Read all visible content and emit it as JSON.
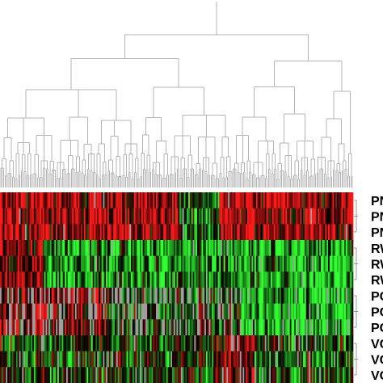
{
  "chart_data": {
    "type": "heatmap",
    "title": "",
    "xlabel": "",
    "ylabel": "",
    "column_count": 240,
    "column_dendrogram": true,
    "row_dendrogram": true,
    "row_labels": [
      "PN",
      "PN",
      "PN",
      "RW",
      "RW",
      "RW",
      "PC",
      "PC",
      "PC",
      "VC",
      "VC",
      "VC"
    ],
    "color_scale": {
      "high": "#ff1a1a",
      "mid": "#000000",
      "low": "#33ff33",
      "missing": "#9e9e9e"
    },
    "row_groups": [
      {
        "label": "PN",
        "rows": 3,
        "pattern": "mostly red, black stripes; green/black patch in middle"
      },
      {
        "label": "RW",
        "rows": 3,
        "pattern": "mostly green, some red at left, black stripes"
      },
      {
        "label": "PC",
        "rows": 3,
        "pattern": "grey (missing) mixed with red at left, green at right"
      },
      {
        "label": "VC",
        "rows": 3,
        "pattern": "mixed green, red and black"
      }
    ]
  }
}
